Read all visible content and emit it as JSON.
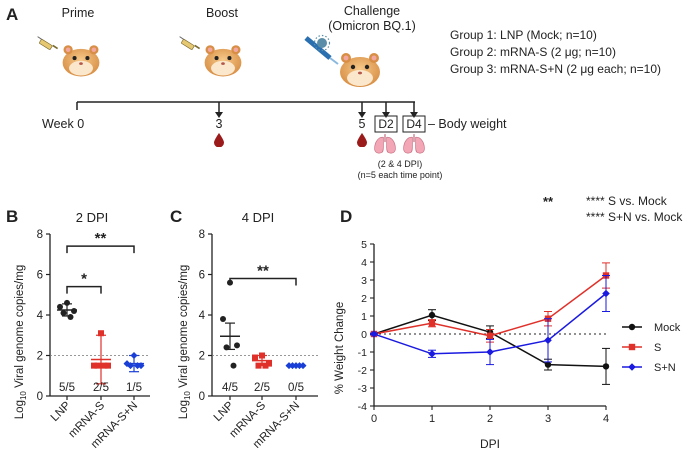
{
  "panel_a": {
    "letter": "A",
    "stages": {
      "prime": "Prime",
      "boost": "Boost",
      "challenge": "Challenge",
      "challenge_virus": "(Omicron BQ.1)"
    },
    "timeline": {
      "week_label": "Week 0",
      "t3": "3",
      "t5": "5",
      "d2": "D2",
      "d4": "D4",
      "body_weight": "– Body weight"
    },
    "dpi_note_1": "(2 & 4 DPI)",
    "dpi_note_2": "(n=5 each time point)",
    "groups": [
      {
        "label": "Group 1: LNP (Mock; n=10)",
        "color": "#222222"
      },
      {
        "label": "Group 2: mRNA-S (2 μg; n=10)",
        "color": "#e0302a"
      },
      {
        "label": "Group 3: mRNA-S+N (2 μg each; n=10)",
        "color": "#4a8fd6"
      }
    ]
  },
  "chart_data": [
    {
      "type": "scatter",
      "panel": "B",
      "title": "2 DPI",
      "ylabel": "Log10 Viral genome copies/mg",
      "ylabel_main": "Log",
      "ylabel_sub": "10",
      "ylabel_rest": " Viral genome copies/mg",
      "ylim": [
        0,
        8
      ],
      "yticks": [
        "0",
        "2",
        "4",
        "6",
        "8"
      ],
      "lod": 2.0,
      "categories": [
        "LNP",
        "mRNA-S",
        "mRNA-S+N"
      ],
      "colors": [
        "#222222",
        "#e0302a",
        "#1a3fd6"
      ],
      "points": [
        [
          4.6,
          4.4,
          4.2,
          4.1,
          3.9
        ],
        [
          3.1,
          1.5,
          1.5,
          1.5,
          1.5
        ],
        [
          2.0,
          1.6,
          1.5,
          1.5,
          1.5
        ]
      ],
      "mean": [
        4.25,
        1.8,
        1.6
      ],
      "sd": [
        0.3,
        1.2,
        0.4
      ],
      "counts": [
        "5/5",
        "2/5",
        "1/5"
      ],
      "significance": [
        {
          "from": 0,
          "to": 1,
          "label": "*",
          "y": 5.4
        },
        {
          "from": 0,
          "to": 2,
          "label": "**",
          "y": 7.4
        }
      ]
    },
    {
      "type": "scatter",
      "panel": "C",
      "title": "4 DPI",
      "ylabel": "Log10 Viral genome copies/mg",
      "ylabel_main": "Log",
      "ylabel_sub": "10",
      "ylabel_rest": " Viral genome copies/mg",
      "ylim": [
        0,
        8
      ],
      "yticks": [
        "0",
        "2",
        "4",
        "6",
        "8"
      ],
      "lod": 2.0,
      "categories": [
        "LNP",
        "mRNA-S",
        "mRNA-S+N"
      ],
      "colors": [
        "#222222",
        "#e0302a",
        "#1a3fd6"
      ],
      "points": [
        [
          5.6,
          3.8,
          2.5,
          2.4,
          1.5
        ],
        [
          2.0,
          1.9,
          1.6,
          1.5,
          1.5
        ],
        [
          1.5,
          1.5,
          1.5,
          1.5,
          1.5
        ]
      ],
      "mean": [
        2.95,
        1.75,
        1.5
      ],
      "sd": [
        0.65,
        0.25,
        0.0
      ],
      "counts": [
        "4/5",
        "2/5",
        "0/5"
      ],
      "significance": [
        {
          "from": 0,
          "to": 2,
          "label": "**",
          "y": 5.8
        }
      ]
    },
    {
      "type": "line",
      "panel": "D",
      "title": "",
      "xlabel": "DPI",
      "ylabel": "% Weight Change",
      "x": [
        0,
        1,
        2,
        3,
        4
      ],
      "xlim": [
        0,
        4
      ],
      "ylim": [
        -4,
        5
      ],
      "xticks": [
        "0",
        "1",
        "2",
        "3",
        "4"
      ],
      "yticks": [
        "-4",
        "-3",
        "-2",
        "-1",
        "0",
        "1",
        "2",
        "3",
        "4",
        "5"
      ],
      "series": [
        {
          "name": "Mock",
          "color": "#111111",
          "marker": "circle",
          "values": [
            0,
            1.05,
            0.1,
            -1.7,
            -1.8
          ],
          "err": [
            0.05,
            0.3,
            0.35,
            0.3,
            1.0
          ]
        },
        {
          "name": "S",
          "color": "#e0302a",
          "marker": "square",
          "values": [
            0,
            0.6,
            -0.1,
            0.85,
            3.25
          ],
          "err": [
            0.05,
            0.2,
            0.35,
            0.4,
            0.7
          ]
        },
        {
          "name": "S+N",
          "color": "#1a1ae0",
          "marker": "diamond",
          "values": [
            0,
            -1.1,
            -1.0,
            -0.35,
            2.25
          ],
          "err": [
            0.05,
            0.2,
            0.7,
            1.2,
            1.0
          ]
        }
      ],
      "annotations": {
        "sig_top": "**",
        "legend_sig_1": "**** S vs. Mock",
        "legend_sig_2": "**** S+N vs. Mock"
      }
    }
  ]
}
